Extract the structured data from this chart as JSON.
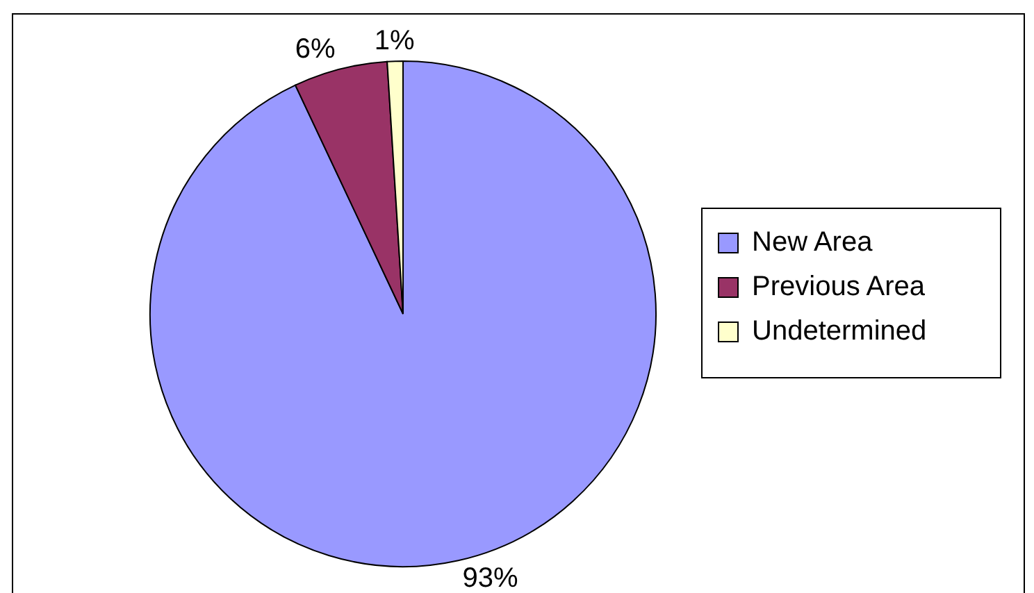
{
  "chart_data": {
    "type": "pie",
    "categories": [
      "New Area",
      "Previous Area",
      "Undetermined"
    ],
    "values": [
      93,
      6,
      1
    ],
    "colors": [
      "#9999ff",
      "#993366",
      "#ffffcc"
    ],
    "value_labels": [
      "93%",
      "6%",
      "1%"
    ],
    "legend": "right"
  }
}
